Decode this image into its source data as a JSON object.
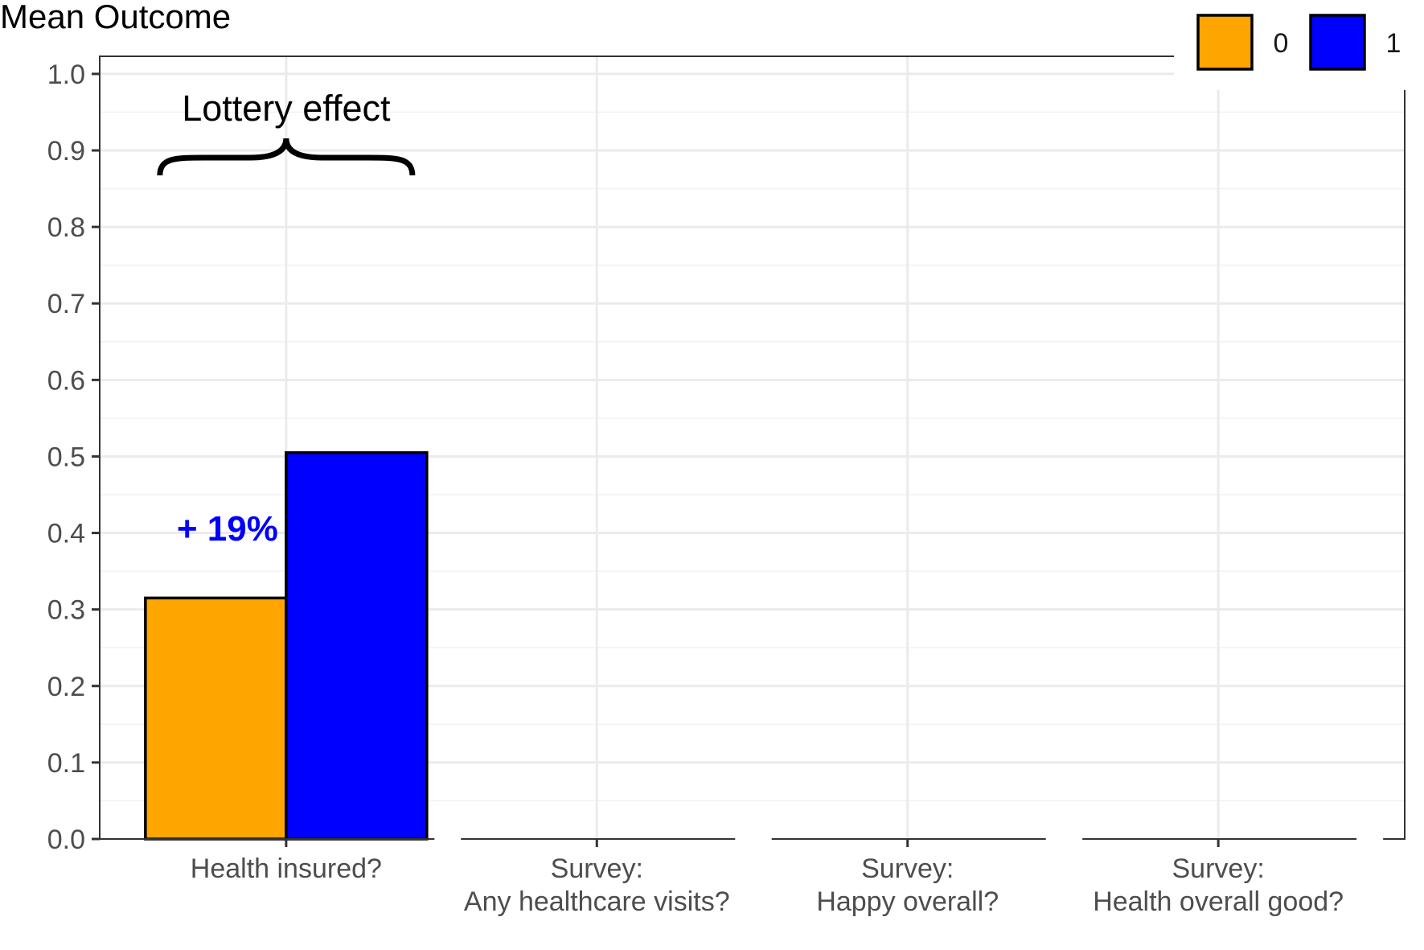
{
  "chart_data": {
    "type": "bar",
    "ylabel": "Mean Outcome",
    "xlabel": "",
    "ylim": [
      0,
      1.0
    ],
    "yticks": [
      "0.0",
      "0.1",
      "0.2",
      "0.3",
      "0.4",
      "0.5",
      "0.6",
      "0.7",
      "0.8",
      "0.9",
      "1.0"
    ],
    "categories": [
      [
        "Health insured?"
      ],
      [
        "Survey:",
        "Any healthcare visits?"
      ],
      [
        "Survey:",
        "Happy overall?"
      ],
      [
        "Survey:",
        "Health overall good?"
      ]
    ],
    "series": [
      {
        "name": "0",
        "color": "#FFA500",
        "values": [
          0.315,
          null,
          null,
          null
        ]
      },
      {
        "name": "1",
        "color": "#0000FF",
        "values": [
          0.505,
          null,
          null,
          null
        ]
      }
    ],
    "grid": true,
    "legend": {
      "placement": "top-right",
      "entries": [
        "0",
        "1"
      ]
    },
    "annotations": {
      "brace_label": "Lottery effect",
      "difference_label": "+ 19%",
      "difference_color": "#0000FF"
    }
  }
}
